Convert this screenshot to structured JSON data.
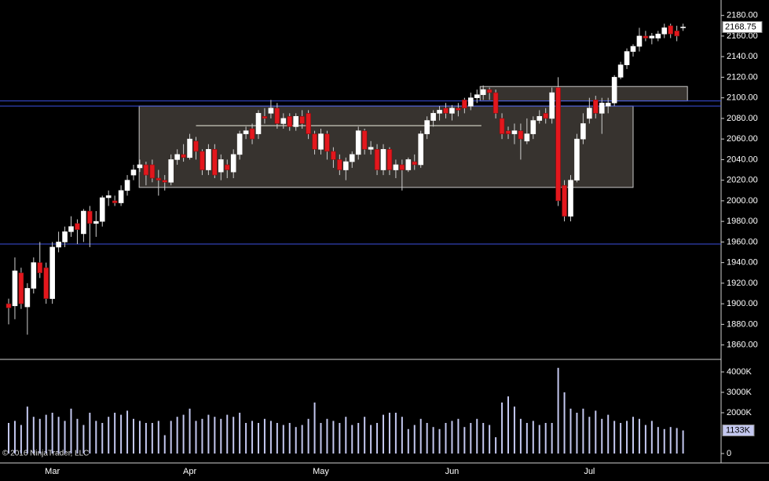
{
  "footer": "© 2016 NinjaTrader, LLC",
  "chart_data": [
    {
      "type": "candlestick",
      "categories": [
        null,
        null,
        null,
        null,
        null,
        null,
        null,
        "Mar",
        null,
        null,
        null,
        null,
        null,
        null,
        null,
        null,
        null,
        null,
        null,
        null,
        null,
        null,
        null,
        null,
        null,
        null,
        null,
        null,
        null,
        "Apr",
        null,
        null,
        null,
        null,
        null,
        null,
        null,
        null,
        null,
        null,
        null,
        null,
        null,
        null,
        null,
        null,
        null,
        null,
        null,
        null,
        "May",
        null,
        null,
        null,
        null,
        null,
        null,
        null,
        null,
        null,
        null,
        null,
        null,
        null,
        null,
        null,
        null,
        null,
        null,
        null,
        null,
        "Jun",
        null,
        null,
        null,
        null,
        null,
        null,
        null,
        null,
        null,
        null,
        null,
        null,
        null,
        null,
        null,
        null,
        null,
        null,
        null,
        null,
        null,
        "Jul",
        null,
        null,
        null,
        null,
        null,
        null,
        null,
        null,
        null,
        null,
        null,
        null,
        null,
        null,
        null
      ],
      "open": [
        1900,
        1898,
        1930,
        1897,
        1915,
        1940,
        1935,
        1905,
        1955,
        1960,
        1970,
        1978,
        1968,
        1990,
        1978,
        1980,
        2003,
        2000,
        1998,
        2010,
        2025,
        2032,
        2035,
        2035,
        2022,
        2020,
        2018,
        2040,
        2045,
        2042,
        2058,
        2048,
        2030,
        2050,
        2028,
        2035,
        2028,
        2045,
        2065,
        2070,
        2065,
        2082,
        2085,
        2090,
        2075,
        2082,
        2072,
        2082,
        2085,
        2065,
        2050,
        2065,
        2048,
        2040,
        2030,
        2038,
        2045,
        2068,
        2050,
        2050,
        2030,
        2050,
        2030,
        2035,
        2030,
        2038,
        2035,
        2065,
        2078,
        2085,
        2090,
        2085,
        2090,
        2098,
        2092,
        2100,
        2103,
        2108,
        2105,
        2080,
        2068,
        2065,
        2068,
        2058,
        2065,
        2078,
        2085,
        2080,
        2110,
        2015,
        1985,
        2020,
        2060,
        2080,
        2098,
        2085,
        2092,
        2095,
        2120,
        2132,
        2145,
        2150,
        2160,
        2158,
        2158,
        2162,
        2170,
        2165,
        2168
      ],
      "high": [
        1905,
        1945,
        1935,
        1920,
        1945,
        1960,
        1940,
        1960,
        1970,
        1975,
        1985,
        1982,
        1992,
        1995,
        1990,
        2005,
        2010,
        2005,
        2015,
        2025,
        2035,
        2040,
        2038,
        2040,
        2030,
        2025,
        2045,
        2050,
        2055,
        2065,
        2062,
        2050,
        2055,
        2055,
        2045,
        2040,
        2050,
        2068,
        2072,
        2075,
        2088,
        2090,
        2098,
        2095,
        2085,
        2085,
        2085,
        2088,
        2088,
        2068,
        2070,
        2068,
        2052,
        2045,
        2042,
        2048,
        2072,
        2070,
        2058,
        2055,
        2055,
        2052,
        2040,
        2040,
        2042,
        2045,
        2068,
        2082,
        2088,
        2092,
        2095,
        2093,
        2095,
        2100,
        2105,
        2108,
        2112,
        2110,
        2108,
        2085,
        2072,
        2075,
        2075,
        2080,
        2082,
        2088,
        2090,
        2110,
        2120,
        2020,
        2025,
        2065,
        2085,
        2100,
        2102,
        2100,
        2100,
        2122,
        2135,
        2148,
        2152,
        2168,
        2165,
        2163,
        2165,
        2172,
        2172,
        2170,
        2172
      ],
      "low": [
        1880,
        1885,
        1895,
        1870,
        1910,
        1925,
        1900,
        1900,
        1950,
        1955,
        1965,
        1958,
        1960,
        1955,
        1965,
        1975,
        1995,
        1995,
        1995,
        2005,
        2020,
        2028,
        2015,
        2018,
        2005,
        2010,
        2015,
        2035,
        2038,
        2040,
        2040,
        2025,
        2025,
        2022,
        2020,
        2022,
        2022,
        2040,
        2060,
        2055,
        2060,
        2075,
        2080,
        2070,
        2070,
        2068,
        2068,
        2070,
        2060,
        2045,
        2045,
        2040,
        2032,
        2025,
        2020,
        2032,
        2040,
        2045,
        2045,
        2025,
        2025,
        2025,
        2022,
        2010,
        2028,
        2030,
        2032,
        2060,
        2072,
        2078,
        2080,
        2078,
        2082,
        2085,
        2088,
        2095,
        2098,
        2098,
        2080,
        2060,
        2060,
        2055,
        2040,
        2055,
        2060,
        2075,
        2075,
        2075,
        1995,
        1980,
        1980,
        2018,
        2055,
        2075,
        2080,
        2065,
        2085,
        2092,
        2118,
        2128,
        2140,
        2145,
        2155,
        2152,
        2155,
        2158,
        2158,
        2155,
        2165
      ],
      "close": [
        1896,
        1932,
        1900,
        1915,
        1940,
        1930,
        1905,
        1955,
        1960,
        1970,
        1975,
        1972,
        1990,
        1978,
        1980,
        2003,
        2005,
        1998,
        2010,
        2020,
        2030,
        2035,
        2025,
        2022,
        2020,
        2018,
        2040,
        2045,
        2042,
        2060,
        2048,
        2030,
        2050,
        2025,
        2040,
        2030,
        2045,
        2065,
        2068,
        2060,
        2085,
        2080,
        2090,
        2075,
        2080,
        2072,
        2082,
        2075,
        2065,
        2050,
        2065,
        2048,
        2040,
        2030,
        2038,
        2045,
        2068,
        2050,
        2052,
        2030,
        2050,
        2030,
        2035,
        2030,
        2040,
        2035,
        2065,
        2078,
        2085,
        2088,
        2085,
        2090,
        2088,
        2090,
        2100,
        2103,
        2108,
        2105,
        2085,
        2065,
        2065,
        2068,
        2060,
        2065,
        2078,
        2082,
        2080,
        2105,
        2000,
        1985,
        2020,
        2060,
        2075,
        2090,
        2085,
        2095,
        2095,
        2120,
        2132,
        2145,
        2150,
        2160,
        2158,
        2160,
        2162,
        2168,
        2162,
        2160,
        2168.75
      ],
      "colors": {
        "up": "#ffffff",
        "down": "#e3171d",
        "wick": "#cfcfcf"
      },
      "ylim": [
        1846,
        2195
      ],
      "yticks": [
        {
          "value": 1860,
          "label": "1860.00"
        },
        {
          "value": 1880,
          "label": "1880.00"
        },
        {
          "value": 1900,
          "label": "1900.00"
        },
        {
          "value": 1920,
          "label": "1920.00"
        },
        {
          "value": 1940,
          "label": "1940.00"
        },
        {
          "value": 1960,
          "label": "1960.00"
        },
        {
          "value": 1980,
          "label": "1980.00"
        },
        {
          "value": 2000,
          "label": "2000.00"
        },
        {
          "value": 2020,
          "label": "2020.00"
        },
        {
          "value": 2040,
          "label": "2040.00"
        },
        {
          "value": 2060,
          "label": "2060.00"
        },
        {
          "value": 2080,
          "label": "2080.00"
        },
        {
          "value": 2100,
          "label": "2100.00"
        },
        {
          "value": 2120,
          "label": "2120.00"
        },
        {
          "value": 2140,
          "label": "2140.00"
        },
        {
          "value": 2160,
          "label": "2160.00"
        },
        {
          "value": 2180,
          "label": "2180.00"
        }
      ],
      "hlines": [
        {
          "value": 2097,
          "color": "#3b4fe0"
        },
        {
          "value": 2092,
          "color": "#3b4fe0"
        },
        {
          "value": 1958,
          "color": "#3b4fe0"
        }
      ],
      "segments": [
        {
          "x": [
            30,
            75.7
          ],
          "value": 2073,
          "color": "#f0f0e0"
        }
      ],
      "boxes": [
        {
          "x": [
            20.9,
            100
          ],
          "y": [
            2013,
            2092
          ],
          "fill": "#37332f",
          "stroke": "#c8c8c8"
        },
        {
          "x": [
            75.5,
            108.7
          ],
          "y": [
            2097,
            2111
          ],
          "fill": "#37332f",
          "stroke": "#c8c8c8"
        }
      ]
    },
    {
      "type": "bar",
      "values": [
        1500,
        1600,
        1400,
        2300,
        1800,
        1700,
        1900,
        2000,
        1800,
        1600,
        2200,
        1700,
        1400,
        2000,
        1600,
        1500,
        1800,
        2000,
        1900,
        2100,
        1700,
        1600,
        1500,
        1500,
        1600,
        900,
        1600,
        1800,
        1900,
        2200,
        1600,
        1700,
        1900,
        1800,
        1700,
        1900,
        1800,
        2000,
        1500,
        1600,
        1500,
        1700,
        1600,
        1500,
        1400,
        1500,
        1300,
        1400,
        1700,
        2500,
        1500,
        1700,
        1600,
        1500,
        1800,
        1400,
        1500,
        1800,
        1400,
        1500,
        1900,
        2000,
        2000,
        1800,
        1200,
        1400,
        1700,
        1500,
        1300,
        1200,
        1500,
        1600,
        1700,
        1300,
        1500,
        1700,
        1500,
        1400,
        800,
        2500,
        2800,
        2300,
        1700,
        1500,
        1600,
        1400,
        1500,
        1500,
        4200,
        3000,
        2200,
        2000,
        2200,
        1800,
        2100,
        1700,
        1900,
        1600,
        1500,
        1600,
        1800,
        1700,
        1400,
        1600,
        1300,
        1200,
        1300,
        1250,
        1133
      ],
      "last_value_label": "1133K",
      "color": "#c4c8f0",
      "ylim": [
        0,
        4615
      ],
      "yticks": [
        0,
        {
          "value": 2000,
          "label": "2000K"
        },
        {
          "value": 3000,
          "label": "3000K"
        },
        {
          "value": 4000,
          "label": "4000K"
        }
      ]
    }
  ]
}
